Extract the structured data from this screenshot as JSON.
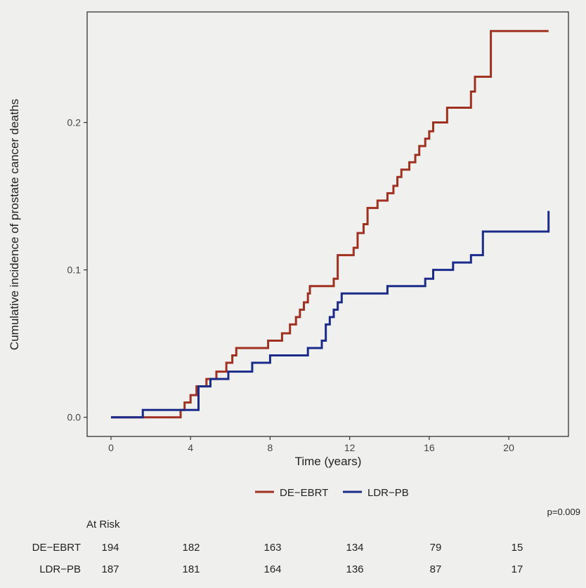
{
  "chart_data": {
    "type": "line",
    "step": true,
    "xlabel": "Time (years)",
    "ylabel": "Cumulative incidence of prostate cancer deaths",
    "xlim": [
      -1.2,
      23
    ],
    "ylim": [
      -0.013,
      0.275
    ],
    "xticks": [
      0,
      4,
      8,
      12,
      16,
      20
    ],
    "yticks": [
      0.0,
      0.1,
      0.2
    ],
    "ytick_labels": [
      "0.0",
      "0.1",
      "0.2"
    ],
    "legend_position": "bottom",
    "p_value": "p=0.009",
    "series": [
      {
        "name": "DE−EBRT",
        "color": "#a03020",
        "x": [
          0,
          1.6,
          3.5,
          3.7,
          4.0,
          4.3,
          4.8,
          5.3,
          5.8,
          6.1,
          6.3,
          7.9,
          8.6,
          9.0,
          9.3,
          9.5,
          9.7,
          9.9,
          10.0,
          11.2,
          11.4,
          11.7,
          12.2,
          12.4,
          12.7,
          12.9,
          13.4,
          13.9,
          14.2,
          14.4,
          14.6,
          15.0,
          15.3,
          15.5,
          15.8,
          16.0,
          16.2,
          16.9,
          18.1,
          18.3,
          19.1,
          22.0
        ],
        "y": [
          0.0,
          0.0,
          0.005,
          0.01,
          0.015,
          0.021,
          0.026,
          0.031,
          0.037,
          0.042,
          0.047,
          0.052,
          0.057,
          0.063,
          0.068,
          0.073,
          0.078,
          0.084,
          0.089,
          0.094,
          0.11,
          0.11,
          0.115,
          0.125,
          0.131,
          0.142,
          0.147,
          0.152,
          0.157,
          0.163,
          0.168,
          0.173,
          0.178,
          0.184,
          0.189,
          0.194,
          0.2,
          0.21,
          0.221,
          0.231,
          0.262,
          0.262
        ]
      },
      {
        "name": "LDR−PB",
        "color": "#1a2b8a",
        "x": [
          0,
          1.6,
          4.4,
          4.8,
          5.0,
          5.3,
          5.9,
          7.1,
          8.0,
          9.9,
          10.6,
          10.8,
          11.0,
          11.2,
          11.4,
          11.6,
          12.0,
          13.9,
          15.8,
          16.2,
          17.2,
          18.1,
          18.7,
          22.0
        ],
        "y": [
          0.0,
          0.005,
          0.021,
          0.021,
          0.026,
          0.026,
          0.031,
          0.037,
          0.042,
          0.047,
          0.052,
          0.063,
          0.068,
          0.073,
          0.078,
          0.084,
          0.084,
          0.089,
          0.094,
          0.1,
          0.105,
          0.11,
          0.126,
          0.14
        ]
      }
    ]
  },
  "risk_table": {
    "title": "At Risk",
    "times": [
      0,
      4,
      8,
      12,
      16,
      20
    ],
    "rows": [
      {
        "label": "DE−EBRT",
        "values": [
          "194",
          "182",
          "163",
          "134",
          "79",
          "15"
        ]
      },
      {
        "label": "LDR−PB",
        "values": [
          "187",
          "181",
          "164",
          "136",
          "87",
          "17"
        ]
      }
    ]
  }
}
